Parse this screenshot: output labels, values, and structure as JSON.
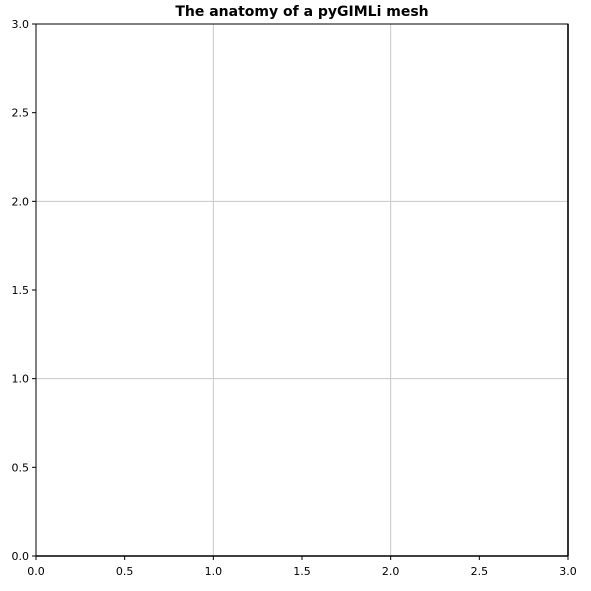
{
  "chart_data": {
    "type": "scatter",
    "title": "The anatomy of a pyGIMLi mesh",
    "xlabel": "",
    "ylabel": "",
    "xlim": [
      0.0,
      3.0
    ],
    "ylim": [
      0.0,
      3.0
    ],
    "x_ticks": [
      "0.0",
      "0.5",
      "1.0",
      "1.5",
      "2.0",
      "2.5",
      "3.0"
    ],
    "y_ticks": [
      "0.0",
      "0.5",
      "1.0",
      "1.5",
      "2.0",
      "2.5",
      "3.0"
    ],
    "grid": true,
    "grid_lines_x": [
      1.0,
      2.0
    ],
    "grid_lines_y": [
      1.0,
      2.0
    ],
    "series": []
  }
}
